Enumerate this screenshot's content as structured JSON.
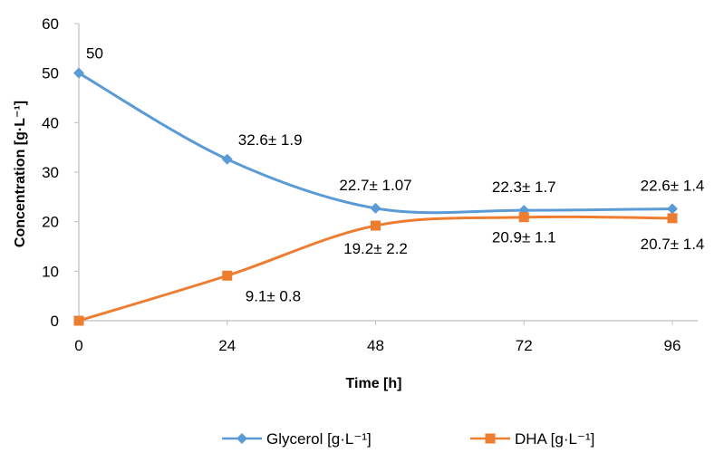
{
  "chart_data": {
    "type": "line",
    "title": "",
    "xlabel": "Time [h]",
    "ylabel": "Concentration [g·L⁻¹]",
    "x": [
      0,
      24,
      48,
      72,
      96
    ],
    "xlim": [
      0,
      96
    ],
    "ylim": [
      0,
      60
    ],
    "x_ticks": [
      "0",
      "24",
      "48",
      "72",
      "96"
    ],
    "y_ticks": [
      "0",
      "10",
      "20",
      "30",
      "40",
      "50",
      "60"
    ],
    "grid": false,
    "legend_position": "bottom",
    "series": [
      {
        "name": "Glycerol [g·L⁻¹]",
        "color": "#5B9BD5",
        "marker": "diamond",
        "values": [
          50,
          32.6,
          22.7,
          22.3,
          22.6
        ],
        "labels": [
          "50",
          "32.6± 1.9",
          "22.7± 1.07",
          "22.3± 1.7",
          "22.6± 1.4"
        ]
      },
      {
        "name": "DHA [g·L⁻¹]",
        "color": "#ED7D31",
        "marker": "square",
        "values": [
          0,
          9.1,
          19.2,
          20.9,
          20.7
        ],
        "labels": [
          "",
          "9.1± 0.8",
          "19.2± 2.2",
          "20.9± 1.1",
          "20.7± 1.4"
        ]
      }
    ]
  }
}
